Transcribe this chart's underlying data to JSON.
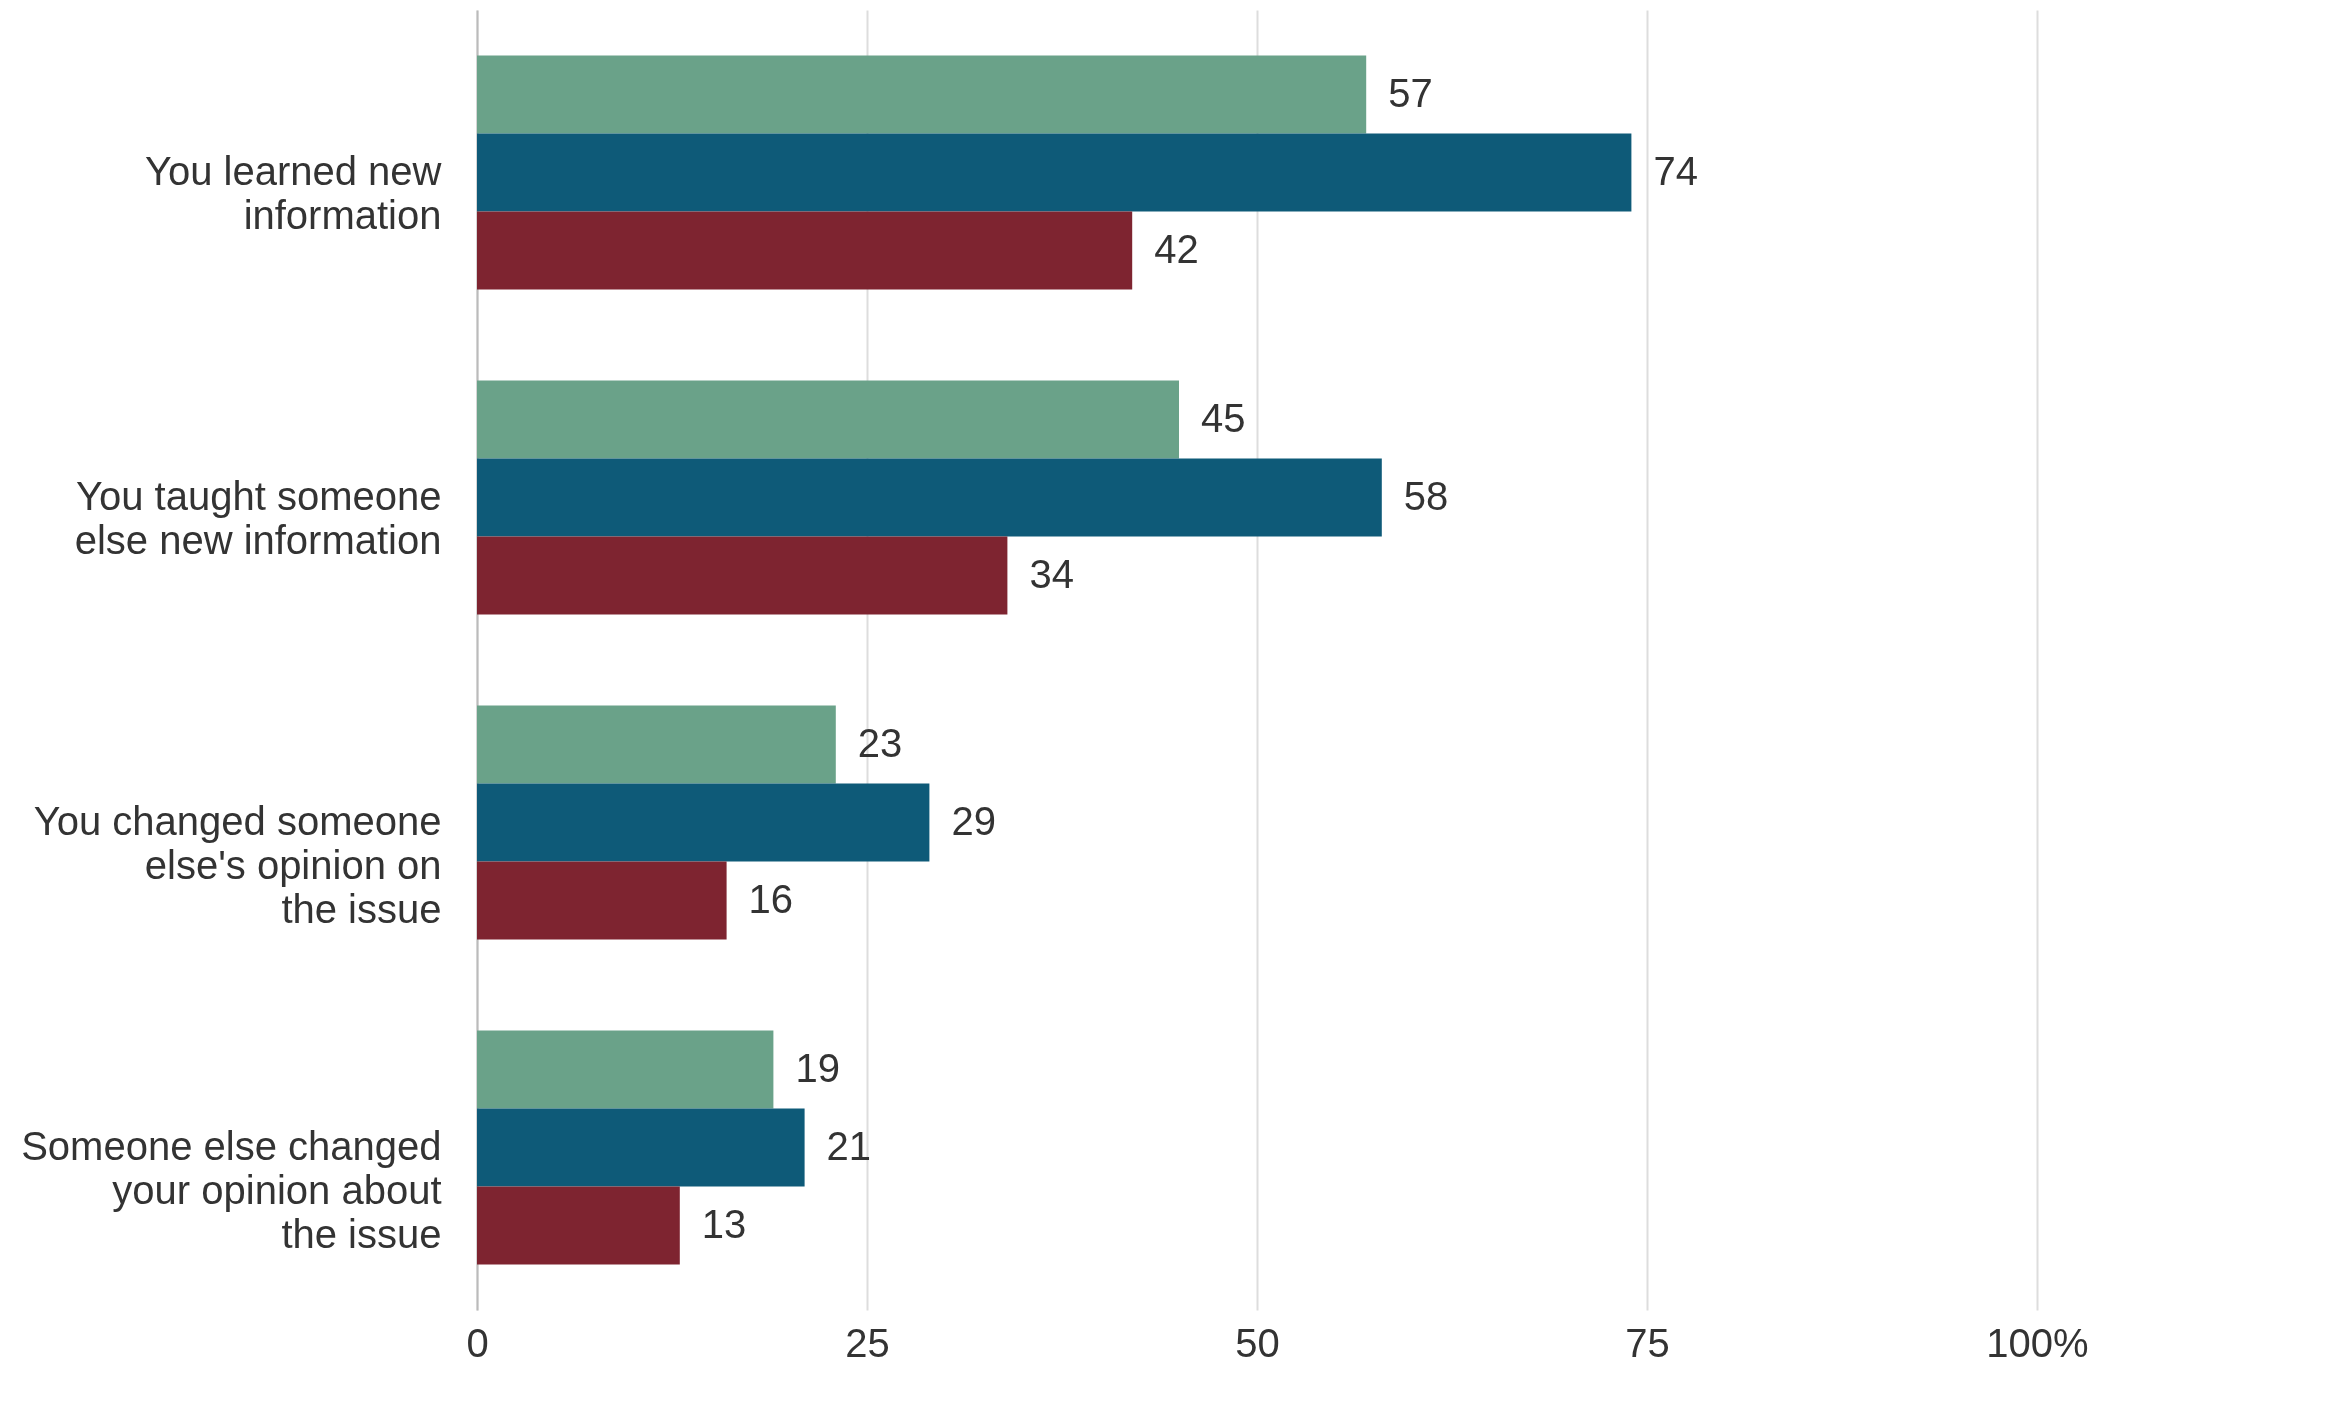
{
  "chart_data": {
    "type": "bar",
    "orientation": "horizontal",
    "data_labels": true,
    "grid": "x",
    "categories": [
      "You learned new information",
      "You taught someone else new information",
      "You changed someone else's opinion on the issue",
      "Someone else changed your opinion about the issue"
    ],
    "series": [
      {
        "color": "#6aa289",
        "values": [
          57,
          45,
          23,
          19
        ]
      },
      {
        "color": "#0e5a78",
        "values": [
          74,
          58,
          29,
          21
        ]
      },
      {
        "color": "#7e2430",
        "values": [
          42,
          34,
          16,
          13
        ]
      }
    ],
    "xlim": [
      0,
      100
    ],
    "xticks": [
      0,
      25,
      50,
      75,
      {
        "value": 100,
        "label": "100%"
      }
    ]
  }
}
